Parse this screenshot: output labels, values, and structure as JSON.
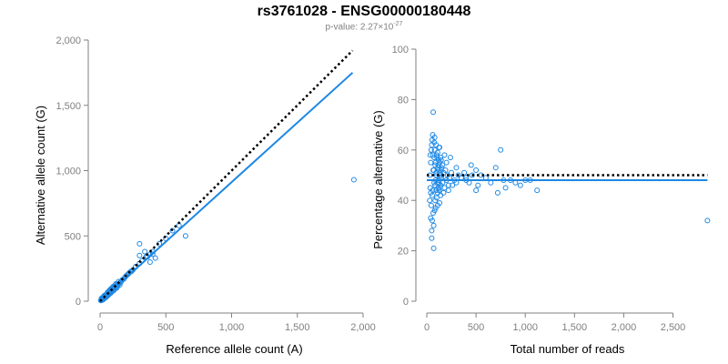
{
  "title": "rs3761028 - ENSG00000180448",
  "subtitle_prefix": "p-value: 2.27×10",
  "subtitle_exponent": "-27",
  "colors": {
    "points": "#1e88e5",
    "fit": "#1e88e5",
    "reference_line": "#000000",
    "axis": "#808080"
  },
  "chart_data": [
    {
      "type": "scatter",
      "xlabel": "Reference allele count (A)",
      "ylabel": "Alternative allele count (G)",
      "xlim": [
        0,
        2000
      ],
      "ylim": [
        0,
        2000
      ],
      "xticks": [
        0,
        500,
        1000,
        1500,
        2000
      ],
      "xtick_labels": [
        "0",
        "500",
        "1,000",
        "1,500",
        "2,000"
      ],
      "yticks": [
        0,
        500,
        1000,
        1500,
        2000
      ],
      "ytick_labels": [
        "0",
        "500",
        "1,000",
        "1,500",
        "2,000"
      ],
      "reference_line": {
        "style": "dotted",
        "x": [
          0,
          1920
        ],
        "y": [
          0,
          1920
        ]
      },
      "fit_line": {
        "x": [
          0,
          1920
        ],
        "y": [
          0,
          1750
        ]
      },
      "points": [
        [
          5,
          5
        ],
        [
          8,
          6
        ],
        [
          10,
          12
        ],
        [
          12,
          9
        ],
        [
          15,
          14
        ],
        [
          18,
          13
        ],
        [
          20,
          20
        ],
        [
          22,
          16
        ],
        [
          25,
          22
        ],
        [
          28,
          25
        ],
        [
          30,
          30
        ],
        [
          32,
          24
        ],
        [
          35,
          33
        ],
        [
          38,
          36
        ],
        [
          40,
          34
        ],
        [
          42,
          40
        ],
        [
          45,
          38
        ],
        [
          48,
          46
        ],
        [
          50,
          44
        ],
        [
          52,
          50
        ],
        [
          55,
          48
        ],
        [
          58,
          56
        ],
        [
          60,
          52
        ],
        [
          62,
          60
        ],
        [
          65,
          58
        ],
        [
          68,
          64
        ],
        [
          70,
          66
        ],
        [
          72,
          70
        ],
        [
          75,
          68
        ],
        [
          78,
          74
        ],
        [
          80,
          76
        ],
        [
          82,
          80
        ],
        [
          85,
          78
        ],
        [
          88,
          84
        ],
        [
          90,
          86
        ],
        [
          92,
          90
        ],
        [
          95,
          88
        ],
        [
          98,
          94
        ],
        [
          100,
          96
        ],
        [
          105,
          100
        ],
        [
          110,
          104
        ],
        [
          115,
          110
        ],
        [
          120,
          112
        ],
        [
          125,
          120
        ],
        [
          130,
          122
        ],
        [
          135,
          128
        ],
        [
          140,
          130
        ],
        [
          145,
          138
        ],
        [
          150,
          140
        ],
        [
          20,
          28
        ],
        [
          30,
          20
        ],
        [
          40,
          46
        ],
        [
          50,
          36
        ],
        [
          60,
          70
        ],
        [
          70,
          56
        ],
        [
          80,
          92
        ],
        [
          90,
          74
        ],
        [
          100,
          112
        ],
        [
          110,
          92
        ],
        [
          120,
          132
        ],
        [
          130,
          110
        ],
        [
          15,
          25
        ],
        [
          25,
          15
        ],
        [
          35,
          45
        ],
        [
          45,
          30
        ],
        [
          55,
          65
        ],
        [
          65,
          50
        ],
        [
          75,
          85
        ],
        [
          85,
          70
        ],
        [
          95,
          105
        ],
        [
          105,
          85
        ],
        [
          115,
          125
        ],
        [
          125,
          100
        ],
        [
          140,
          150
        ],
        [
          150,
          125
        ],
        [
          10,
          20
        ],
        [
          20,
          10
        ],
        [
          30,
          40
        ],
        [
          40,
          28
        ],
        [
          60,
          44
        ],
        [
          70,
          82
        ],
        [
          80,
          62
        ],
        [
          90,
          100
        ],
        [
          100,
          80
        ],
        [
          160,
          150
        ],
        [
          170,
          165
        ],
        [
          180,
          170
        ],
        [
          190,
          185
        ],
        [
          200,
          195
        ],
        [
          210,
          205
        ],
        [
          220,
          215
        ],
        [
          230,
          225
        ],
        [
          240,
          230
        ],
        [
          250,
          240
        ],
        [
          270,
          265
        ],
        [
          300,
          290
        ],
        [
          320,
          310
        ],
        [
          350,
          340
        ],
        [
          380,
          360
        ],
        [
          400,
          380
        ],
        [
          450,
          440
        ],
        [
          500,
          480
        ],
        [
          550,
          540
        ],
        [
          600,
          580
        ],
        [
          300,
          440
        ],
        [
          340,
          380
        ],
        [
          360,
          340
        ],
        [
          400,
          360
        ],
        [
          420,
          330
        ],
        [
          300,
          350
        ],
        [
          650,
          500
        ],
        [
          380,
          300
        ],
        [
          1930,
          930
        ]
      ]
    },
    {
      "type": "scatter",
      "xlabel": "Total number of reads",
      "ylabel": "Percentage alternative (G)",
      "xlim": [
        0,
        2800
      ],
      "ylim": [
        0,
        100
      ],
      "xticks": [
        0,
        500,
        1000,
        1500,
        2000,
        2500
      ],
      "xtick_labels": [
        "0",
        "500",
        "1,000",
        "1,500",
        "2,000",
        "2,500"
      ],
      "yticks": [
        0,
        20,
        40,
        60,
        80,
        100
      ],
      "ytick_labels": [
        "0",
        "20",
        "40",
        "60",
        "80",
        "100"
      ],
      "reference_line": {
        "style": "dotted",
        "x": [
          0,
          2850
        ],
        "y": [
          50,
          50
        ]
      },
      "fit_line": {
        "x": [
          0,
          2850
        ],
        "y": [
          48,
          48
        ]
      },
      "points": [
        [
          30,
          50
        ],
        [
          35,
          45
        ],
        [
          40,
          55
        ],
        [
          45,
          38
        ],
        [
          50,
          62
        ],
        [
          55,
          42
        ],
        [
          60,
          58
        ],
        [
          65,
          35
        ],
        [
          70,
          52
        ],
        [
          75,
          47
        ],
        [
          80,
          60
        ],
        [
          85,
          40
        ],
        [
          90,
          55
        ],
        [
          95,
          44
        ],
        [
          100,
          50
        ],
        [
          105,
          57
        ],
        [
          110,
          43
        ],
        [
          115,
          53
        ],
        [
          120,
          48
        ],
        [
          125,
          61
        ],
        [
          130,
          39
        ],
        [
          135,
          51
        ],
        [
          140,
          46
        ],
        [
          145,
          56
        ],
        [
          150,
          49
        ],
        [
          30,
          40
        ],
        [
          35,
          58
        ],
        [
          40,
          33
        ],
        [
          45,
          60
        ],
        [
          50,
          28
        ],
        [
          55,
          64
        ],
        [
          60,
          44
        ],
        [
          65,
          52
        ],
        [
          70,
          30
        ],
        [
          75,
          63
        ],
        [
          80,
          36
        ],
        [
          85,
          54
        ],
        [
          90,
          48
        ],
        [
          95,
          62
        ],
        [
          100,
          41
        ],
        [
          105,
          47
        ],
        [
          110,
          59
        ],
        [
          115,
          45
        ],
        [
          120,
          52
        ],
        [
          125,
          44
        ],
        [
          130,
          55
        ],
        [
          135,
          49
        ],
        [
          140,
          42
        ],
        [
          145,
          50
        ],
        [
          150,
          53
        ],
        [
          160,
          47
        ],
        [
          170,
          51
        ],
        [
          180,
          45
        ],
        [
          190,
          52
        ],
        [
          200,
          48
        ],
        [
          210,
          50
        ],
        [
          220,
          46
        ],
        [
          230,
          49
        ],
        [
          250,
          51
        ],
        [
          280,
          48
        ],
        [
          300,
          47
        ],
        [
          320,
          50
        ],
        [
          350,
          49
        ],
        [
          380,
          51
        ],
        [
          400,
          48
        ],
        [
          430,
          47
        ],
        [
          460,
          50
        ],
        [
          500,
          52
        ],
        [
          520,
          46
        ],
        [
          550,
          50
        ],
        [
          600,
          49
        ],
        [
          650,
          47
        ],
        [
          700,
          53
        ],
        [
          720,
          43
        ],
        [
          750,
          60
        ],
        [
          780,
          48
        ],
        [
          800,
          45
        ],
        [
          850,
          48
        ],
        [
          900,
          47
        ],
        [
          950,
          46
        ],
        [
          1000,
          48
        ],
        [
          1050,
          48
        ],
        [
          1120,
          44
        ],
        [
          2850,
          32
        ],
        [
          65,
          75
        ],
        [
          70,
          21
        ],
        [
          50,
          25
        ],
        [
          60,
          66
        ],
        [
          80,
          65
        ],
        [
          55,
          32
        ],
        [
          90,
          37
        ],
        [
          40,
          43
        ],
        [
          100,
          58
        ],
        [
          75,
          57
        ],
        [
          120,
          56
        ],
        [
          110,
          38
        ],
        [
          130,
          61
        ],
        [
          140,
          57
        ],
        [
          85,
          46
        ],
        [
          95,
          51
        ],
        [
          115,
          54
        ],
        [
          125,
          47
        ],
        [
          135,
          45
        ],
        [
          145,
          52
        ],
        [
          160,
          54
        ],
        [
          170,
          43
        ],
        [
          180,
          58
        ],
        [
          200,
          55
        ],
        [
          220,
          44
        ],
        [
          240,
          57
        ],
        [
          260,
          46
        ],
        [
          300,
          53
        ],
        [
          400,
          49
        ],
        [
          450,
          54
        ],
        [
          500,
          44
        ]
      ]
    }
  ]
}
